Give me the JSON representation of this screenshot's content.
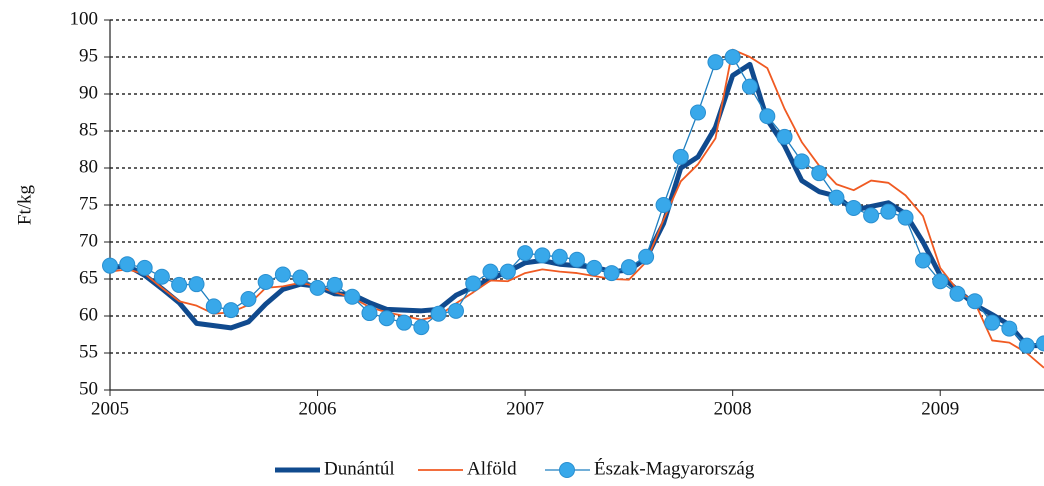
{
  "chart_data": {
    "type": "line",
    "y_label": "Ft/kg",
    "x": [
      2005,
      2005.083,
      2005.167,
      2005.25,
      2005.333,
      2005.417,
      2005.5,
      2005.583,
      2005.667,
      2005.75,
      2005.833,
      2005.917,
      2006,
      2006.083,
      2006.167,
      2006.25,
      2006.333,
      2006.417,
      2006.5,
      2006.583,
      2006.667,
      2006.75,
      2006.833,
      2006.917,
      2007,
      2007.083,
      2007.167,
      2007.25,
      2007.333,
      2007.417,
      2007.5,
      2007.583,
      2007.667,
      2007.75,
      2007.833,
      2007.917,
      2008,
      2008.083,
      2008.167,
      2008.25,
      2008.333,
      2008.417,
      2008.5,
      2008.583,
      2008.667,
      2008.75,
      2008.833,
      2008.917,
      2009,
      2009.083,
      2009.167,
      2009.25,
      2009.333,
      2009.417,
      2009.5
    ],
    "series": [
      {
        "name": "Dunántúl",
        "color": "#104a8e",
        "marker": false,
        "values": [
          66.5,
          66.8,
          65.5,
          63.7,
          61.8,
          59.0,
          58.7,
          58.4,
          59.2,
          61.6,
          63.6,
          64.3,
          64.0,
          63.0,
          62.9,
          61.8,
          60.9,
          60.8,
          60.7,
          60.9,
          62.8,
          63.9,
          65.0,
          66.0,
          67.2,
          67.5,
          67.0,
          66.8,
          66.6,
          66.0,
          66.2,
          67.8,
          72.5,
          80.0,
          81.5,
          85.5,
          92.5,
          94.0,
          86.5,
          83.0,
          78.3,
          76.8,
          76.2,
          74.3,
          74.8,
          75.3,
          73.8,
          70.0,
          65.5,
          63.5,
          61.5,
          60.2,
          58.8,
          56.0,
          56.0
        ]
      },
      {
        "name": "Alföld",
        "color": "#f05a22",
        "marker": false,
        "values": [
          66.0,
          66.3,
          65.7,
          63.8,
          62.0,
          61.4,
          60.3,
          60.5,
          61.5,
          63.8,
          64.0,
          64.5,
          64.0,
          63.2,
          62.5,
          61.2,
          60.5,
          60.0,
          59.5,
          60.0,
          61.7,
          63.2,
          64.8,
          64.7,
          65.8,
          66.3,
          66.0,
          65.8,
          65.4,
          65.0,
          64.9,
          67.3,
          73.0,
          78.2,
          80.5,
          84.0,
          96.0,
          95.0,
          93.5,
          88.0,
          83.5,
          80.3,
          77.8,
          77.0,
          78.3,
          78.0,
          76.3,
          73.5,
          66.5,
          63.5,
          61.8,
          56.7,
          56.4,
          55.0,
          53.0
        ]
      },
      {
        "name": "Észak-Magyarország",
        "color": "#38a8ea",
        "marker": true,
        "values": [
          66.8,
          67.0,
          66.5,
          65.3,
          64.2,
          64.3,
          61.3,
          60.8,
          62.3,
          64.6,
          65.6,
          65.2,
          63.8,
          64.2,
          62.6,
          60.4,
          59.7,
          59.1,
          58.5,
          60.3,
          60.7,
          64.4,
          66.0,
          66.0,
          68.5,
          68.2,
          68.0,
          67.6,
          66.5,
          65.8,
          66.6,
          68.0,
          75.0,
          81.5,
          87.5,
          94.3,
          95.0,
          91.0,
          87.0,
          84.2,
          80.9,
          79.3,
          76.0,
          74.6,
          73.6,
          74.1,
          73.3,
          67.5,
          64.7,
          63.0,
          62.0,
          59.1,
          58.3,
          56.0,
          56.3
        ]
      }
    ],
    "xlim": [
      2005,
      2009.5
    ],
    "xticks": [
      2005,
      2006,
      2007,
      2008,
      2009
    ],
    "ylim": [
      50,
      100
    ],
    "yticks": [
      50,
      55,
      60,
      65,
      70,
      75,
      80,
      85,
      90,
      95,
      100
    ],
    "grid": true,
    "legend": "bottom"
  }
}
